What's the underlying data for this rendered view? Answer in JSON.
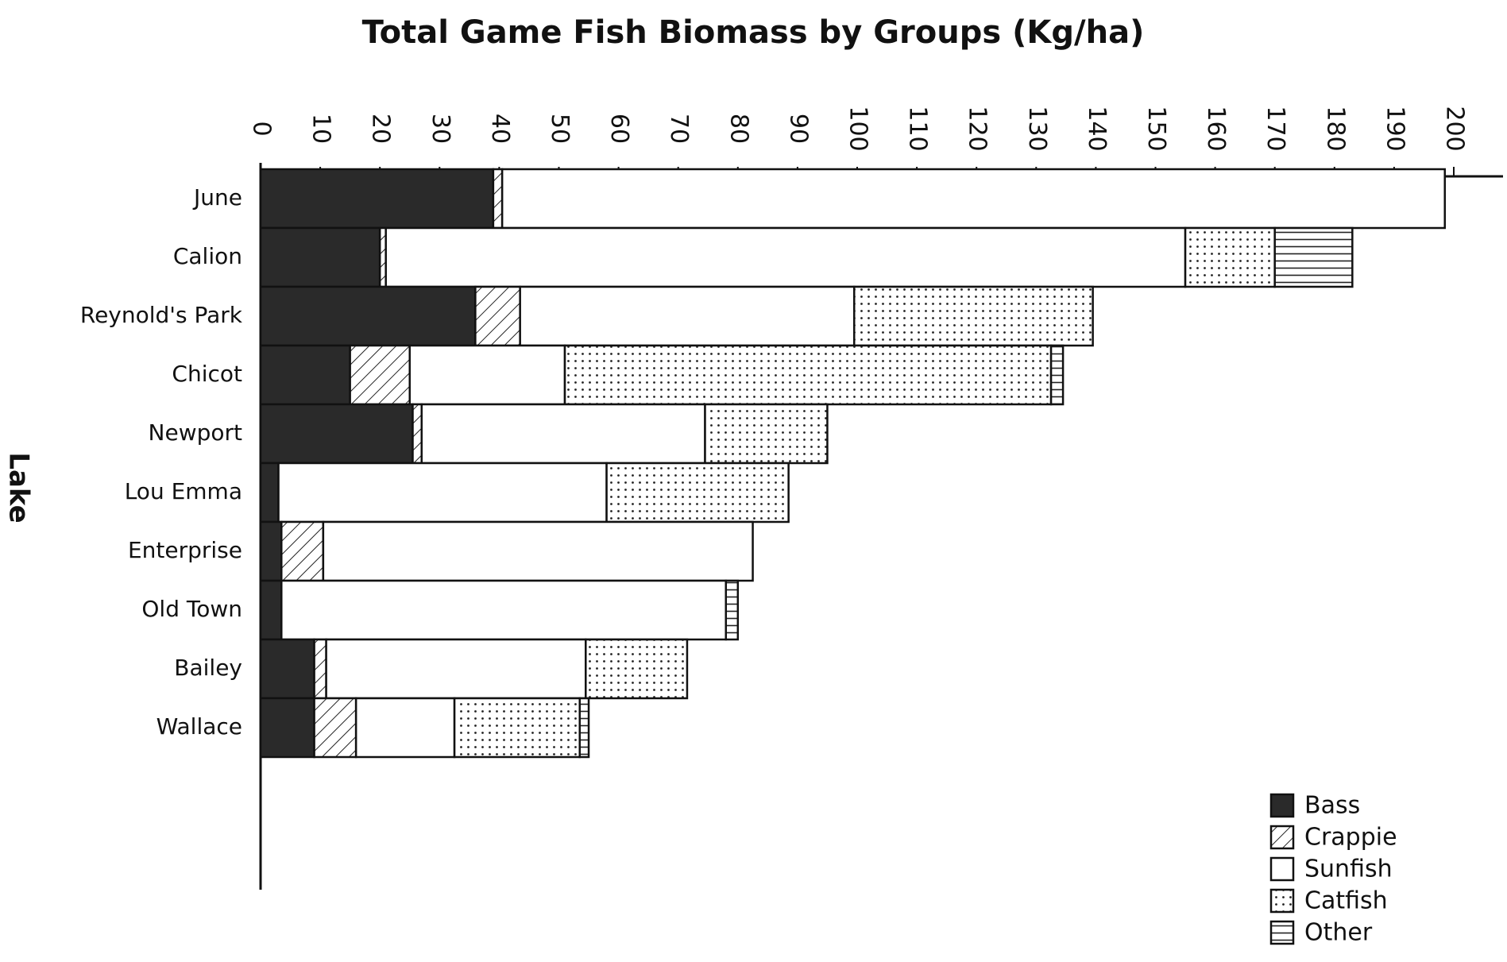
{
  "chart_data": {
    "type": "stacked_bar_horizontal",
    "title": "Total Game Fish Biomass by Groups (Kg/ha)",
    "y_label": "Lake",
    "categories": [
      "June",
      "Calion",
      "Reynold's Park",
      "Chicot",
      "Newport",
      "Lou Emma",
      "Enterprise",
      "Old Town",
      "Bailey",
      "Wallace"
    ],
    "series": [
      {
        "name": "Bass",
        "color": "#2a2a2a",
        "pattern": "solid",
        "values": [
          39,
          20,
          36,
          15,
          25.5,
          3,
          3.5,
          3.5,
          9,
          9
        ]
      },
      {
        "name": "Crappie",
        "color": "#222222",
        "pattern": "diagonal",
        "values": [
          1.5,
          1,
          7.5,
          10,
          1.5,
          0,
          7,
          0,
          2,
          7
        ]
      },
      {
        "name": "Sunfish",
        "color": "#222222",
        "pattern": "none",
        "values": [
          158,
          134,
          56,
          26,
          47.5,
          55,
          72,
          74.5,
          43.5,
          16.5
        ]
      },
      {
        "name": "Catfish",
        "color": "#222222",
        "pattern": "dots",
        "values": [
          0,
          15,
          40,
          81.5,
          20.5,
          30.5,
          0,
          0,
          17,
          21
        ]
      },
      {
        "name": "Other",
        "color": "#222222",
        "pattern": "horizontal",
        "values": [
          0,
          13,
          0,
          2,
          0,
          0,
          0,
          2,
          0,
          1.5
        ]
      }
    ],
    "xlim": [
      0,
      200
    ],
    "xticks": [
      0,
      10,
      20,
      30,
      40,
      50,
      60,
      70,
      80,
      90,
      100,
      110,
      120,
      130,
      140,
      150,
      160,
      170,
      180,
      190,
      200
    ],
    "grid": false,
    "legend": "bottom-right"
  }
}
